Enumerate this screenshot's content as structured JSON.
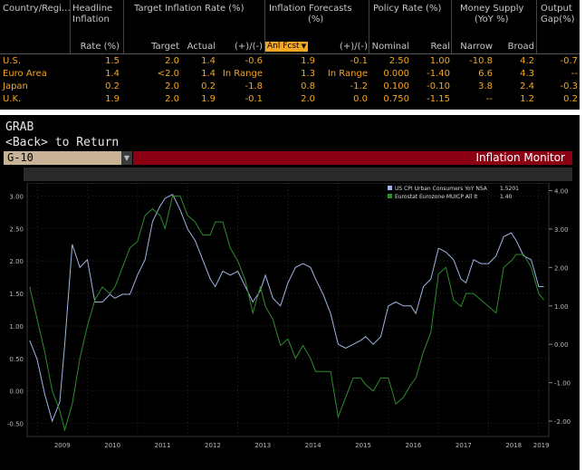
{
  "table": {
    "headers": {
      "country": "Country/Regi…",
      "headline1": "Headline",
      "headline2": "Inflation",
      "target_group": "Target Inflation Rate (%)",
      "forecast1": "Inflation Forecasts",
      "forecast2": "(%)",
      "policy": "Policy Rate (%)",
      "money1": "Money Supply",
      "money2": "(YoY %)",
      "output1": "Output",
      "output2": "Gap(%)"
    },
    "subheaders": {
      "rate": "Rate (%)",
      "target": "Target",
      "actual": "Actual",
      "pm1": "(+)/(-)",
      "anl_fcst": "Anl Fcst",
      "pm2": "(+)/(-)",
      "nominal": "Nominal",
      "real": "Real",
      "narrow": "Narrow",
      "broad": "Broad"
    },
    "rows": [
      {
        "country": "U.S.",
        "rate": "1.5",
        "target": "2.0",
        "actual": "1.4",
        "pm1": "-0.6",
        "fcst": "1.9",
        "pm2": "-0.1",
        "nominal": "2.50",
        "real": "1.00",
        "narrow": "-10.8",
        "broad": "4.2",
        "gap": "-0.7"
      },
      {
        "country": "Euro Area",
        "rate": "1.4",
        "target": "<2.0",
        "actual": "1.4",
        "pm1": "In Range",
        "fcst": "1.3",
        "pm2": "In Range",
        "nominal": "0.000",
        "real": "-1.40",
        "narrow": "6.6",
        "broad": "4.3",
        "gap": "--"
      },
      {
        "country": "Japan",
        "rate": "0.2",
        "target": "2.0",
        "actual": "0.2",
        "pm1": "-1.8",
        "fcst": "0.8",
        "pm2": "-1.2",
        "nominal": "0.100",
        "real": "-0.10",
        "narrow": "3.8",
        "broad": "2.4",
        "gap": "-0.3"
      },
      {
        "country": "U.K.",
        "rate": "1.9",
        "target": "2.0",
        "actual": "1.9",
        "pm1": "-0.1",
        "fcst": "2.0",
        "pm2": "0.0",
        "nominal": "0.750",
        "real": "-1.15",
        "narrow": "--",
        "broad": "1.2",
        "gap": "0.2"
      }
    ]
  },
  "terminal": {
    "line1": "GRAB",
    "line2": "<Back> to Return"
  },
  "security_field": "G-10",
  "screen_title": "Inflation Monitor",
  "colors": {
    "us_series": "#9fb4e6",
    "eu_series": "#2e8b2e",
    "title_bar": "#8b0012",
    "accent": "#f5a623"
  },
  "chart_data": {
    "type": "line",
    "x_labels": [
      "2009",
      "2010",
      "2011",
      "2012",
      "2013",
      "2014",
      "2015",
      "2016",
      "2017",
      "2018",
      "2019"
    ],
    "left_ticks": [
      "3.00",
      "2.50",
      "2.00",
      "1.50",
      "1.00",
      "0.50",
      "0.00",
      "-0.50"
    ],
    "right_ticks": [
      "4.00",
      "3.00",
      "2.00",
      "1.00",
      "0.00",
      "-1.00",
      "-2.00"
    ],
    "left_range": [
      -0.7,
      3.2
    ],
    "right_range": [
      -2.4,
      4.2
    ],
    "legend": [
      {
        "label": "US CPI Urban Consumers YoY NSA",
        "value": "1.5201",
        "color": "#9fb4e6"
      },
      {
        "label": "Eurostat Eurozone MUICP All It",
        "value": "1.40",
        "color": "#2e8b2e"
      }
    ],
    "series": [
      {
        "name": "US CPI Urban Consumers YoY NSA",
        "axis": "right",
        "x": [
          2008.85,
          2009.0,
          2009.15,
          2009.3,
          2009.45,
          2009.55,
          2009.7,
          2009.85,
          2010.0,
          2010.15,
          2010.3,
          2010.45,
          2010.55,
          2010.7,
          2010.85,
          2011.0,
          2011.15,
          2011.3,
          2011.45,
          2011.55,
          2011.7,
          2011.85,
          2012.0,
          2012.15,
          2012.3,
          2012.45,
          2012.55,
          2012.7,
          2012.85,
          2013.0,
          2013.15,
          2013.3,
          2013.45,
          2013.55,
          2013.7,
          2013.85,
          2014.0,
          2014.15,
          2014.3,
          2014.45,
          2014.55,
          2014.7,
          2014.85,
          2015.0,
          2015.15,
          2015.3,
          2015.45,
          2015.55,
          2015.7,
          2015.85,
          2016.0,
          2016.15,
          2016.3,
          2016.45,
          2016.55,
          2016.7,
          2016.85,
          2017.0,
          2017.15,
          2017.3,
          2017.45,
          2017.55,
          2017.7,
          2017.85,
          2018.0,
          2018.15,
          2018.3,
          2018.45,
          2018.55,
          2018.7,
          2018.85,
          2019.0,
          2019.1
        ],
        "y": [
          0.1,
          -0.4,
          -1.3,
          -2.0,
          -1.5,
          0.0,
          2.6,
          2.0,
          2.2,
          1.1,
          1.1,
          1.3,
          1.2,
          1.3,
          1.3,
          1.8,
          2.2,
          3.2,
          3.6,
          3.8,
          3.9,
          3.5,
          3.0,
          2.7,
          2.2,
          1.7,
          1.5,
          1.9,
          1.8,
          1.9,
          1.5,
          1.1,
          1.4,
          1.8,
          1.2,
          1.0,
          1.6,
          2.0,
          2.1,
          2.0,
          1.7,
          1.3,
          0.8,
          0.0,
          -0.1,
          0.0,
          0.1,
          0.2,
          0.0,
          0.2,
          1.0,
          1.1,
          1.0,
          1.0,
          0.8,
          1.5,
          1.7,
          2.5,
          2.4,
          2.2,
          1.7,
          1.6,
          2.2,
          2.1,
          2.1,
          2.3,
          2.8,
          2.9,
          2.7,
          2.3,
          2.2,
          1.5,
          1.5
        ]
      },
      {
        "name": "Eurostat Eurozone MUICP All It",
        "axis": "left",
        "x": [
          2008.85,
          2009.0,
          2009.15,
          2009.3,
          2009.45,
          2009.55,
          2009.7,
          2009.85,
          2010.0,
          2010.15,
          2010.3,
          2010.45,
          2010.55,
          2010.7,
          2010.85,
          2011.0,
          2011.15,
          2011.3,
          2011.45,
          2011.55,
          2011.7,
          2011.85,
          2012.0,
          2012.15,
          2012.3,
          2012.45,
          2012.55,
          2012.7,
          2012.85,
          2013.0,
          2013.15,
          2013.3,
          2013.45,
          2013.55,
          2013.7,
          2013.85,
          2014.0,
          2014.15,
          2014.3,
          2014.45,
          2014.55,
          2014.7,
          2014.85,
          2015.0,
          2015.15,
          2015.3,
          2015.45,
          2015.55,
          2015.7,
          2015.85,
          2016.0,
          2016.15,
          2016.3,
          2016.45,
          2016.55,
          2016.7,
          2016.85,
          2017.0,
          2017.15,
          2017.3,
          2017.45,
          2017.55,
          2017.7,
          2017.85,
          2018.0,
          2018.15,
          2018.3,
          2018.45,
          2018.55,
          2018.7,
          2018.85,
          2019.0,
          2019.1
        ],
        "y": [
          1.6,
          1.1,
          0.6,
          0.0,
          -0.3,
          -0.6,
          -0.2,
          0.5,
          1.0,
          1.4,
          1.6,
          1.5,
          1.6,
          1.9,
          2.2,
          2.3,
          2.7,
          2.8,
          2.7,
          2.5,
          3.0,
          3.0,
          2.7,
          2.6,
          2.4,
          2.4,
          2.6,
          2.6,
          2.2,
          2.0,
          1.7,
          1.2,
          1.6,
          1.3,
          1.1,
          0.7,
          0.8,
          0.5,
          0.7,
          0.5,
          0.3,
          0.3,
          0.3,
          -0.4,
          -0.1,
          0.2,
          0.2,
          0.1,
          0.0,
          0.2,
          0.2,
          -0.2,
          -0.1,
          0.1,
          0.2,
          0.6,
          0.9,
          1.8,
          1.9,
          1.4,
          1.3,
          1.5,
          1.5,
          1.4,
          1.3,
          1.2,
          1.9,
          2.0,
          2.1,
          2.1,
          1.9,
          1.5,
          1.4
        ]
      }
    ]
  }
}
